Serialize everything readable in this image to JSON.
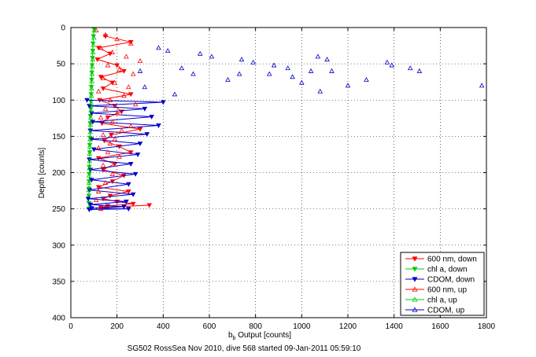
{
  "chart_data": {
    "type": "scatter",
    "ylabel": "Depth [counts]",
    "xlabel_main": "b",
    "xlabel_sub": "b",
    "xlabel_rest": " Output [counts]",
    "caption": "SG502 RossSea Nov 2010, dive 568 started 09-Jan-2011 05:59:10",
    "xlim": [
      0,
      1800
    ],
    "ylim": [
      0,
      400
    ],
    "y_reversed": true,
    "grid": true,
    "legend_position": "bottom-right",
    "x_ticks": [
      "0",
      "200",
      "400",
      "600",
      "800",
      "1000",
      "1200",
      "1400",
      "1600",
      "1800"
    ],
    "y_ticks": [
      "0",
      "50",
      "100",
      "150",
      "200",
      "250",
      "300",
      "350",
      "400"
    ],
    "series": [
      {
        "name": "600 nm, down",
        "color": "#ff0000",
        "marker": "tri-down",
        "filled": true,
        "connect": true,
        "x": [
          150,
          260,
          120,
          170,
          115,
          200,
          230,
          130,
          180,
          140,
          260,
          125,
          190,
          220,
          160,
          135,
          300,
          175,
          145,
          210,
          260,
          120,
          190,
          140,
          230,
          180,
          120,
          250,
          170,
          140,
          200,
          270,
          160,
          130,
          340
        ],
        "y": [
          12,
          20,
          28,
          36,
          44,
          52,
          60,
          68,
          76,
          84,
          92,
          100,
          108,
          116,
          124,
          132,
          140,
          148,
          156,
          164,
          172,
          180,
          188,
          196,
          204,
          212,
          220,
          226,
          232,
          236,
          240,
          243,
          246,
          248,
          245
        ]
      },
      {
        "name": "chl a, down",
        "color": "#00cc00",
        "marker": "tri-down",
        "filled": true,
        "connect": true,
        "x": [
          100,
          98,
          96,
          95,
          94,
          92,
          91,
          90,
          89,
          88,
          87,
          86,
          85,
          84,
          84,
          83,
          82,
          82,
          81,
          80,
          80,
          79,
          79,
          78,
          78,
          78
        ],
        "y": [
          2,
          12,
          22,
          32,
          42,
          52,
          62,
          72,
          82,
          92,
          102,
          112,
          122,
          132,
          142,
          152,
          162,
          172,
          182,
          192,
          202,
          212,
          222,
          232,
          242,
          250
        ]
      },
      {
        "name": "CDOM, down",
        "color": "#0000cc",
        "marker": "tri-down",
        "filled": true,
        "connect": true,
        "x": [
          70,
          400,
          80,
          320,
          90,
          350,
          95,
          380,
          85,
          330,
          90,
          300,
          100,
          290,
          80,
          260,
          85,
          280,
          90,
          250,
          80,
          270,
          75,
          240,
          85,
          230,
          90,
          250,
          80
        ],
        "y": [
          100,
          103,
          108,
          112,
          118,
          123,
          130,
          135,
          142,
          147,
          154,
          160,
          168,
          175,
          182,
          188,
          196,
          202,
          210,
          216,
          224,
          230,
          236,
          240,
          244,
          247,
          249,
          250,
          251
        ]
      },
      {
        "name": "600 nm, up",
        "color": "#ff0000",
        "marker": "tri-up",
        "filled": false,
        "connect": false,
        "x": [
          110,
          150,
          200,
          260,
          130,
          180,
          240,
          300,
          160,
          210,
          270,
          140,
          190,
          250,
          120,
          230,
          170,
          280,
          150,
          200,
          130,
          180,
          260,
          220,
          140,
          190,
          170,
          120,
          160,
          210,
          140,
          180,
          150,
          120,
          110,
          130
        ],
        "y": [
          4,
          10,
          16,
          22,
          28,
          34,
          40,
          46,
          52,
          58,
          64,
          70,
          76,
          82,
          88,
          94,
          100,
          106,
          112,
          118,
          124,
          130,
          136,
          142,
          148,
          154,
          160,
          166,
          172,
          178,
          190,
          202,
          214,
          226,
          238,
          250
        ]
      },
      {
        "name": "chl a, up",
        "color": "#00cc00",
        "marker": "tri-up",
        "filled": false,
        "connect": false,
        "x": [
          102,
          100,
          98,
          96,
          95,
          93,
          92,
          91,
          90,
          89,
          88,
          87,
          86,
          85,
          84,
          83,
          82,
          81,
          81,
          80,
          79,
          79,
          78
        ],
        "y": [
          4,
          14,
          24,
          34,
          44,
          54,
          64,
          74,
          84,
          94,
          104,
          114,
          124,
          134,
          144,
          154,
          164,
          174,
          184,
          194,
          204,
          214,
          224
        ]
      },
      {
        "name": "CDOM, up",
        "color": "#0000cc",
        "marker": "tri-up",
        "filled": false,
        "connect": false,
        "x": [
          380,
          420,
          560,
          610,
          740,
          790,
          880,
          940,
          1040,
          1070,
          1110,
          1370,
          1390,
          1470,
          1510,
          1780,
          480,
          530,
          680,
          730,
          960,
          1000,
          1200,
          1280,
          1080,
          1130,
          860,
          300,
          320,
          450
        ],
        "y": [
          28,
          32,
          36,
          40,
          44,
          48,
          52,
          56,
          60,
          40,
          44,
          48,
          52,
          56,
          60,
          80,
          56,
          64,
          72,
          64,
          68,
          76,
          80,
          72,
          88,
          60,
          64,
          60,
          82,
          92
        ]
      }
    ]
  }
}
